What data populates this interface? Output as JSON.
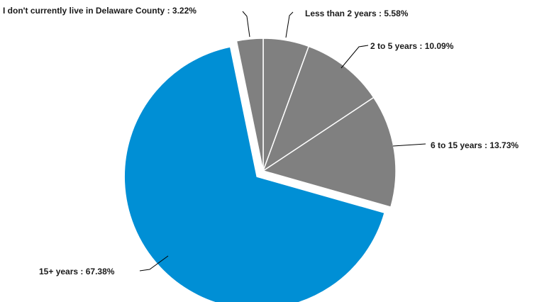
{
  "chart_data": {
    "type": "pie",
    "title": "",
    "slices": [
      {
        "label": "Less than 2 years",
        "value": 5.58,
        "display": "Less than 2 years : 5.58%"
      },
      {
        "label": "2 to 5 years",
        "value": 10.09,
        "display": "2 to 5 years : 10.09%"
      },
      {
        "label": "6 to 15 years",
        "value": 13.73,
        "display": "6 to 15 years : 13.73%"
      },
      {
        "label": "15+ years",
        "value": 67.38,
        "display": "15+ years : 67.38%",
        "exploded": true
      },
      {
        "label": "I don't currently live in Delaware County",
        "value": 3.22,
        "display": "I don't currently live in Delaware County : 3.22%"
      }
    ],
    "colors": {
      "highlight": "#008fd5",
      "other": "#808080",
      "border": "#ffffff"
    },
    "start": "12 o'clock",
    "direction": "clockwise"
  }
}
